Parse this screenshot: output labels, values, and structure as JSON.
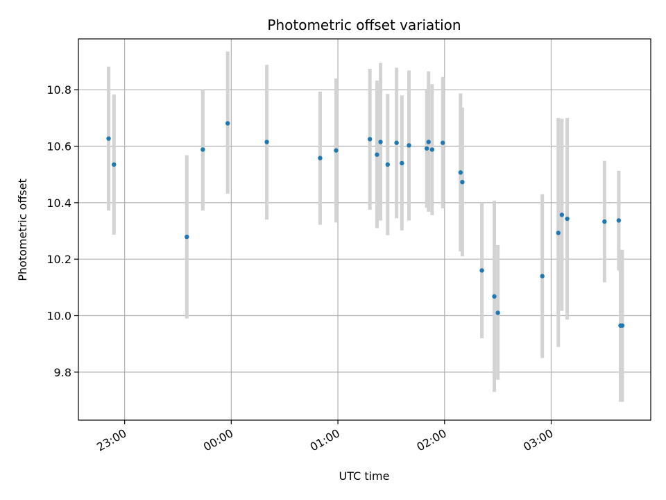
{
  "chart_data": {
    "type": "scatter",
    "title": "Photometric offset variation",
    "xlabel": "UTC time",
    "ylabel": "Photometric offset",
    "x_tick_labels": [
      "23:00",
      "00:00",
      "01:00",
      "02:00",
      "03:00"
    ],
    "x_tick_values": [
      "22:00+60",
      "00:00",
      "01:00",
      "02:00",
      "03:00"
    ],
    "y_tick_labels": [
      "9.8",
      "10.0",
      "10.2",
      "10.4",
      "10.6",
      "10.8"
    ],
    "y_tick_values": [
      9.8,
      10.0,
      10.2,
      10.4,
      10.6,
      10.8
    ],
    "xlim": [
      "22:34",
      "03:56"
    ],
    "ylim": [
      9.63,
      10.98
    ],
    "grid": true,
    "point_color": "#1f77b4",
    "errorbar_color": "#d3d3d3",
    "points": [
      {
        "time": "22:51",
        "y": 10.627,
        "lo": 10.372,
        "hi": 10.882
      },
      {
        "time": "22:54",
        "y": 10.535,
        "lo": 10.287,
        "hi": 10.783
      },
      {
        "time": "23:35",
        "y": 10.279,
        "lo": 9.99,
        "hi": 10.568
      },
      {
        "time": "23:44",
        "y": 10.588,
        "lo": 10.372,
        "hi": 10.801
      },
      {
        "time": "23:58",
        "y": 10.681,
        "lo": 10.432,
        "hi": 10.935
      },
      {
        "time": "00:20",
        "y": 10.615,
        "lo": 10.34,
        "hi": 10.888
      },
      {
        "time": "00:50",
        "y": 10.558,
        "lo": 10.322,
        "hi": 10.793
      },
      {
        "time": "00:59",
        "y": 10.585,
        "lo": 10.33,
        "hi": 10.84
      },
      {
        "time": "01:18",
        "y": 10.625,
        "lo": 10.375,
        "hi": 10.874
      },
      {
        "time": "01:22",
        "y": 10.57,
        "lo": 10.31,
        "hi": 10.832
      },
      {
        "time": "01:24",
        "y": 10.615,
        "lo": 10.337,
        "hi": 10.895
      },
      {
        "time": "01:28",
        "y": 10.535,
        "lo": 10.285,
        "hi": 10.785
      },
      {
        "time": "01:33",
        "y": 10.612,
        "lo": 10.345,
        "hi": 10.878
      },
      {
        "time": "01:36",
        "y": 10.54,
        "lo": 10.302,
        "hi": 10.78
      },
      {
        "time": "01:40",
        "y": 10.603,
        "lo": 10.337,
        "hi": 10.868
      },
      {
        "time": "01:50",
        "y": 10.592,
        "lo": 10.382,
        "hi": 10.803
      },
      {
        "time": "01:51",
        "y": 10.615,
        "lo": 10.368,
        "hi": 10.865
      },
      {
        "time": "01:53",
        "y": 10.588,
        "lo": 10.356,
        "hi": 10.82
      },
      {
        "time": "01:59",
        "y": 10.612,
        "lo": 10.38,
        "hi": 10.845
      },
      {
        "time": "02:09",
        "y": 10.507,
        "lo": 10.228,
        "hi": 10.787
      },
      {
        "time": "02:10",
        "y": 10.473,
        "lo": 10.21,
        "hi": 10.737
      },
      {
        "time": "02:21",
        "y": 10.16,
        "lo": 9.92,
        "hi": 10.4
      },
      {
        "time": "02:28",
        "y": 10.068,
        "lo": 9.73,
        "hi": 10.407
      },
      {
        "time": "02:30",
        "y": 10.01,
        "lo": 9.773,
        "hi": 10.25
      },
      {
        "time": "02:55",
        "y": 10.14,
        "lo": 9.85,
        "hi": 10.43
      },
      {
        "time": "03:04",
        "y": 10.293,
        "lo": 9.889,
        "hi": 10.7
      },
      {
        "time": "03:06",
        "y": 10.357,
        "lo": 10.017,
        "hi": 10.697
      },
      {
        "time": "03:09",
        "y": 10.343,
        "lo": 9.986,
        "hi": 10.7
      },
      {
        "time": "03:30",
        "y": 10.333,
        "lo": 10.118,
        "hi": 10.548
      },
      {
        "time": "03:38",
        "y": 10.337,
        "lo": 10.16,
        "hi": 10.513
      },
      {
        "time": "03:39",
        "y": 9.965,
        "lo": 9.695,
        "hi": 10.233
      },
      {
        "time": "03:40",
        "y": 9.965,
        "lo": 9.695,
        "hi": 10.233
      }
    ]
  }
}
